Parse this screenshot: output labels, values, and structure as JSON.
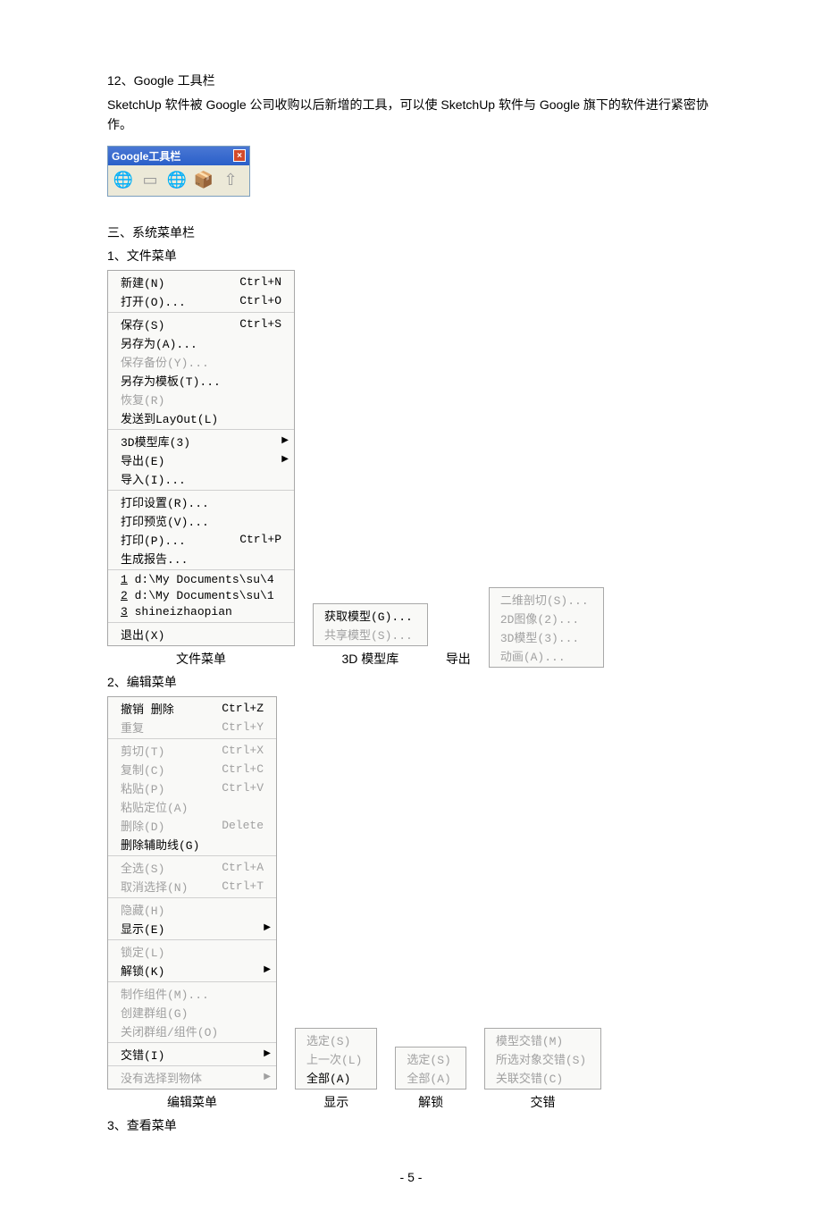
{
  "headings": {
    "h12": "12、Google 工具栏",
    "h12_desc": "SketchUp 软件被 Google 公司收购以后新增的工具，可以使 SketchUp 软件与 Google 旗下的软件进行紧密协作。",
    "h3": "三、系统菜单栏",
    "h3_1": "1、文件菜单",
    "h3_2": "2、编辑菜单",
    "h3_3": "3、查看菜单"
  },
  "google_toolbar": {
    "title": "Google工具栏"
  },
  "file_menu": {
    "label": "文件菜单",
    "sections": [
      [
        {
          "label": "新建(N)",
          "shortcut": "Ctrl+N"
        },
        {
          "label": "打开(O)...",
          "shortcut": "Ctrl+O"
        }
      ],
      [
        {
          "label": "保存(S)",
          "shortcut": "Ctrl+S"
        },
        {
          "label": "另存为(A)..."
        },
        {
          "label": "保存备份(Y)...",
          "disabled": true
        },
        {
          "label": "另存为模板(T)..."
        },
        {
          "label": "恢复(R)",
          "disabled": true
        },
        {
          "label": "发送到LayOut(L)"
        }
      ],
      [
        {
          "label": "3D模型库(3)",
          "submenu": true
        },
        {
          "label": "导出(E)",
          "submenu": true
        },
        {
          "label": "导入(I)..."
        }
      ],
      [
        {
          "label": "打印设置(R)..."
        },
        {
          "label": "打印预览(V)..."
        },
        {
          "label": "打印(P)...",
          "shortcut": "Ctrl+P"
        },
        {
          "label": "生成报告..."
        }
      ],
      [
        {
          "label": "1 d:\\My Documents\\su\\4",
          "ul": true
        },
        {
          "label": "2 d:\\My Documents\\su\\1",
          "ul": true
        },
        {
          "label": "3 shineizhaopian",
          "ul": true
        }
      ],
      [
        {
          "label": "退出(X)"
        }
      ]
    ]
  },
  "submenu_3d": {
    "label": "3D 模型库",
    "items": [
      {
        "label": "获取模型(G)..."
      },
      {
        "label": "共享模型(S)...",
        "disabled": true
      }
    ]
  },
  "submenu_export": {
    "label": "导出",
    "items": [
      {
        "label": "二维剖切(S)...",
        "disabled": true
      },
      {
        "label": "2D图像(2)...",
        "disabled": true
      },
      {
        "label": "3D模型(3)...",
        "disabled": true
      },
      {
        "label": "动画(A)...",
        "disabled": true
      }
    ]
  },
  "edit_menu": {
    "label": "编辑菜单",
    "sections": [
      [
        {
          "label": "撤销 删除",
          "shortcut": "Ctrl+Z"
        },
        {
          "label": "重复",
          "shortcut": "Ctrl+Y",
          "disabled": true
        }
      ],
      [
        {
          "label": "剪切(T)",
          "shortcut": "Ctrl+X",
          "disabled": true
        },
        {
          "label": "复制(C)",
          "shortcut": "Ctrl+C",
          "disabled": true
        },
        {
          "label": "粘贴(P)",
          "shortcut": "Ctrl+V",
          "disabled": true
        },
        {
          "label": "粘贴定位(A)",
          "disabled": true
        },
        {
          "label": "删除(D)",
          "shortcut": "Delete",
          "disabled": true
        },
        {
          "label": "删除辅助线(G)"
        }
      ],
      [
        {
          "label": "全选(S)",
          "shortcut": "Ctrl+A",
          "disabled": true
        },
        {
          "label": "取消选择(N)",
          "shortcut": "Ctrl+T",
          "disabled": true
        }
      ],
      [
        {
          "label": "隐藏(H)",
          "disabled": true
        },
        {
          "label": "显示(E)",
          "submenu": true
        }
      ],
      [
        {
          "label": "锁定(L)",
          "disabled": true
        },
        {
          "label": "解锁(K)",
          "submenu": true
        }
      ],
      [
        {
          "label": "制作组件(M)...",
          "disabled": true
        },
        {
          "label": "创建群组(G)",
          "disabled": true
        },
        {
          "label": "关闭群组/组件(O)",
          "disabled": true
        }
      ],
      [
        {
          "label": "交错(I)",
          "submenu": true
        }
      ],
      [
        {
          "label": "没有选择到物体",
          "submenu": true,
          "disabled": true
        }
      ]
    ]
  },
  "submenu_show": {
    "label": "显示",
    "items": [
      {
        "label": "选定(S)",
        "disabled": true
      },
      {
        "label": "上一次(L)",
        "disabled": true
      },
      {
        "label": "全部(A)"
      }
    ]
  },
  "submenu_unlock": {
    "label": "解锁",
    "items": [
      {
        "label": "选定(S)",
        "disabled": true
      },
      {
        "label": "全部(A)",
        "disabled": true
      }
    ]
  },
  "submenu_intersect": {
    "label": "交错",
    "items": [
      {
        "label": "模型交错(M)",
        "disabled": true
      },
      {
        "label": "所选对象交错(S)",
        "disabled": true
      },
      {
        "label": "关联交错(C)",
        "disabled": true
      }
    ]
  },
  "page_num": "- 5 -"
}
